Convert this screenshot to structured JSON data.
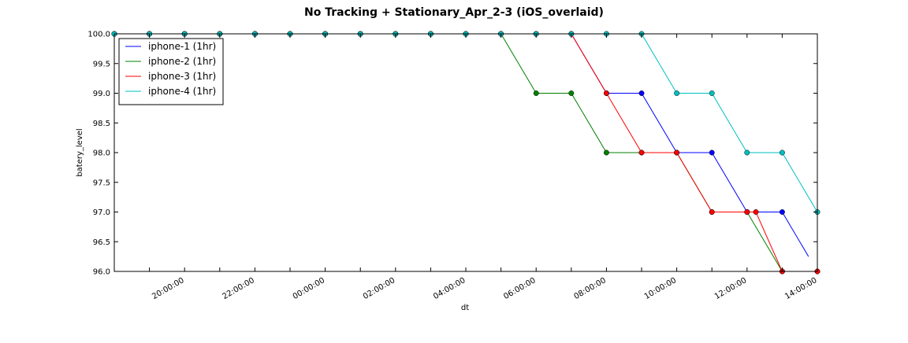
{
  "chart_data": {
    "type": "line",
    "title": "No Tracking + Stationary_Apr_2-3 (iOS_overlaid)",
    "xlabel": "dt",
    "ylabel": "batery_level",
    "ylim": [
      96.0,
      100.0
    ],
    "xlim": [
      "18:00:00",
      "14:00:00"
    ],
    "x_tick_labels": [
      "20:00:00",
      "22:00:00",
      "00:00:00",
      "02:00:00",
      "04:00:00",
      "06:00:00",
      "08:00:00",
      "10:00:00",
      "12:00:00",
      "14:00:00"
    ],
    "y_tick_labels": [
      "96.0",
      "96.5",
      "97.0",
      "97.5",
      "98.0",
      "98.5",
      "99.0",
      "99.5",
      "100.0"
    ],
    "grid": false,
    "legend_position": "upper-left",
    "series": [
      {
        "name": "iphone-1 (1hr)",
        "color": "#0000ff",
        "points": [
          [
            "18:00",
            100
          ],
          [
            "19:00",
            100
          ],
          [
            "20:00",
            100
          ],
          [
            "21:00",
            100
          ],
          [
            "22:00",
            100
          ],
          [
            "23:00",
            100
          ],
          [
            "00:00",
            100
          ],
          [
            "01:00",
            100
          ],
          [
            "02:00",
            100
          ],
          [
            "03:00",
            100
          ],
          [
            "04:00",
            100
          ],
          [
            "05:00",
            100
          ],
          [
            "06:00",
            100
          ],
          [
            "07:00",
            100
          ],
          [
            "08:00",
            99
          ],
          [
            "09:00",
            99
          ],
          [
            "10:00",
            98
          ],
          [
            "11:00",
            98
          ],
          [
            "12:00",
            97
          ],
          [
            "13:00",
            97
          ],
          [
            "13:45",
            96.25
          ]
        ]
      },
      {
        "name": "iphone-2 (1hr)",
        "color": "#008000",
        "points": [
          [
            "18:00",
            100
          ],
          [
            "19:00",
            100
          ],
          [
            "20:00",
            100
          ],
          [
            "21:00",
            100
          ],
          [
            "22:00",
            100
          ],
          [
            "23:00",
            100
          ],
          [
            "00:00",
            100
          ],
          [
            "01:00",
            100
          ],
          [
            "02:00",
            100
          ],
          [
            "03:00",
            100
          ],
          [
            "04:00",
            100
          ],
          [
            "05:00",
            100
          ],
          [
            "06:00",
            99
          ],
          [
            "07:00",
            99
          ],
          [
            "08:00",
            98
          ],
          [
            "09:00",
            98
          ],
          [
            "10:00",
            98
          ],
          [
            "11:00",
            97
          ],
          [
            "12:00",
            97
          ],
          [
            "13:00",
            96
          ],
          [
            "14:00",
            96
          ]
        ]
      },
      {
        "name": "iphone-3 (1hr)",
        "color": "#ff0000",
        "points": [
          [
            "18:00",
            100
          ],
          [
            "19:00",
            100
          ],
          [
            "20:00",
            100
          ],
          [
            "21:00",
            100
          ],
          [
            "22:00",
            100
          ],
          [
            "23:00",
            100
          ],
          [
            "00:00",
            100
          ],
          [
            "01:00",
            100
          ],
          [
            "02:00",
            100
          ],
          [
            "03:00",
            100
          ],
          [
            "04:00",
            100
          ],
          [
            "05:00",
            100
          ],
          [
            "06:00",
            100
          ],
          [
            "07:00",
            100
          ],
          [
            "08:00",
            99
          ],
          [
            "09:00",
            98
          ],
          [
            "10:00",
            98
          ],
          [
            "11:00",
            97
          ],
          [
            "12:00",
            97
          ],
          [
            "12:15",
            97
          ],
          [
            "13:00",
            96
          ],
          [
            "14:00",
            96
          ]
        ]
      },
      {
        "name": "iphone-4 (1hr)",
        "color": "#00bfbf",
        "points": [
          [
            "18:00",
            100
          ],
          [
            "19:00",
            100
          ],
          [
            "20:00",
            100
          ],
          [
            "21:00",
            100
          ],
          [
            "22:00",
            100
          ],
          [
            "23:00",
            100
          ],
          [
            "00:00",
            100
          ],
          [
            "01:00",
            100
          ],
          [
            "02:00",
            100
          ],
          [
            "03:00",
            100
          ],
          [
            "04:00",
            100
          ],
          [
            "05:00",
            100
          ],
          [
            "06:00",
            100
          ],
          [
            "07:00",
            100
          ],
          [
            "08:00",
            100
          ],
          [
            "09:00",
            100
          ],
          [
            "10:00",
            99
          ],
          [
            "11:00",
            99
          ],
          [
            "12:00",
            98
          ],
          [
            "13:00",
            98
          ],
          [
            "13:45",
            97.25
          ],
          [
            "14:00",
            97
          ]
        ]
      }
    ]
  }
}
